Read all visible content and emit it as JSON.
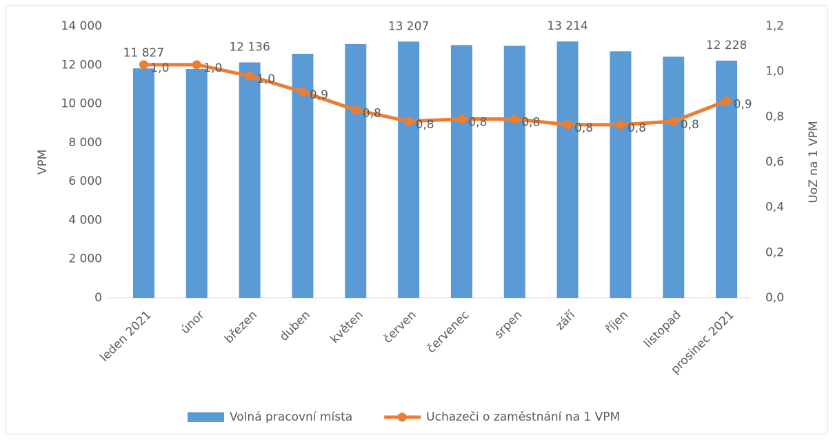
{
  "chart_data": {
    "type": "bar_line",
    "categories": [
      "leden 2021",
      "únor",
      "březen",
      "duben",
      "květen",
      "červen",
      "červenec",
      "srpen",
      "září",
      "říjen",
      "listopad",
      "prosinec 2021"
    ],
    "series": [
      {
        "name": "Volná pracovní místa",
        "type": "bar",
        "color": "#5b9bd5",
        "values": [
          11827,
          11800,
          12136,
          12580,
          13080,
          13207,
          13030,
          12990,
          13214,
          12710,
          12430,
          12228
        ],
        "value_labels": [
          "11 827",
          null,
          "12 136",
          null,
          null,
          "13 207",
          null,
          null,
          "13 214",
          null,
          null,
          "12 228"
        ]
      },
      {
        "name": "Uchazeči o zaměstnání na 1 VPM",
        "type": "line",
        "axis": "y2",
        "color": "#ed7d31",
        "values": [
          1.03,
          1.03,
          0.98,
          0.91,
          0.83,
          0.78,
          0.79,
          0.79,
          0.765,
          0.765,
          0.78,
          0.87
        ],
        "value_labels": [
          "1,0",
          "1,0",
          "1,0",
          "0,9",
          "0,8",
          "0,8",
          "0,8",
          "0,8",
          "0,8",
          "0,8",
          "0,8",
          "0,9"
        ]
      }
    ],
    "y_label": "VPM",
    "y2_label": "UoZ na 1 VPM",
    "ylim": [
      0,
      14000
    ],
    "yticks": [
      0,
      {
        "value": 2000,
        "label": "2 000"
      },
      {
        "value": 4000,
        "label": "4 000"
      },
      {
        "value": 6000,
        "label": "6 000"
      },
      {
        "value": 8000,
        "label": "8 000"
      },
      {
        "value": 10000,
        "label": "10 000"
      },
      {
        "value": 12000,
        "label": "12 000"
      },
      {
        "value": 14000,
        "label": "14 000"
      }
    ],
    "y2lim": [
      0,
      1.2
    ],
    "y2ticks": [
      {
        "value": 0,
        "label": "0,0"
      },
      {
        "value": 0.2,
        "label": "0,2"
      },
      {
        "value": 0.4,
        "label": "0,4"
      },
      {
        "value": 0.6,
        "label": "0,6"
      },
      {
        "value": 0.8,
        "label": "0,8"
      },
      {
        "value": 1.0,
        "label": "1,0"
      },
      {
        "value": 1.2,
        "label": "1,2"
      }
    ],
    "grid": false,
    "legend": "bottom"
  }
}
